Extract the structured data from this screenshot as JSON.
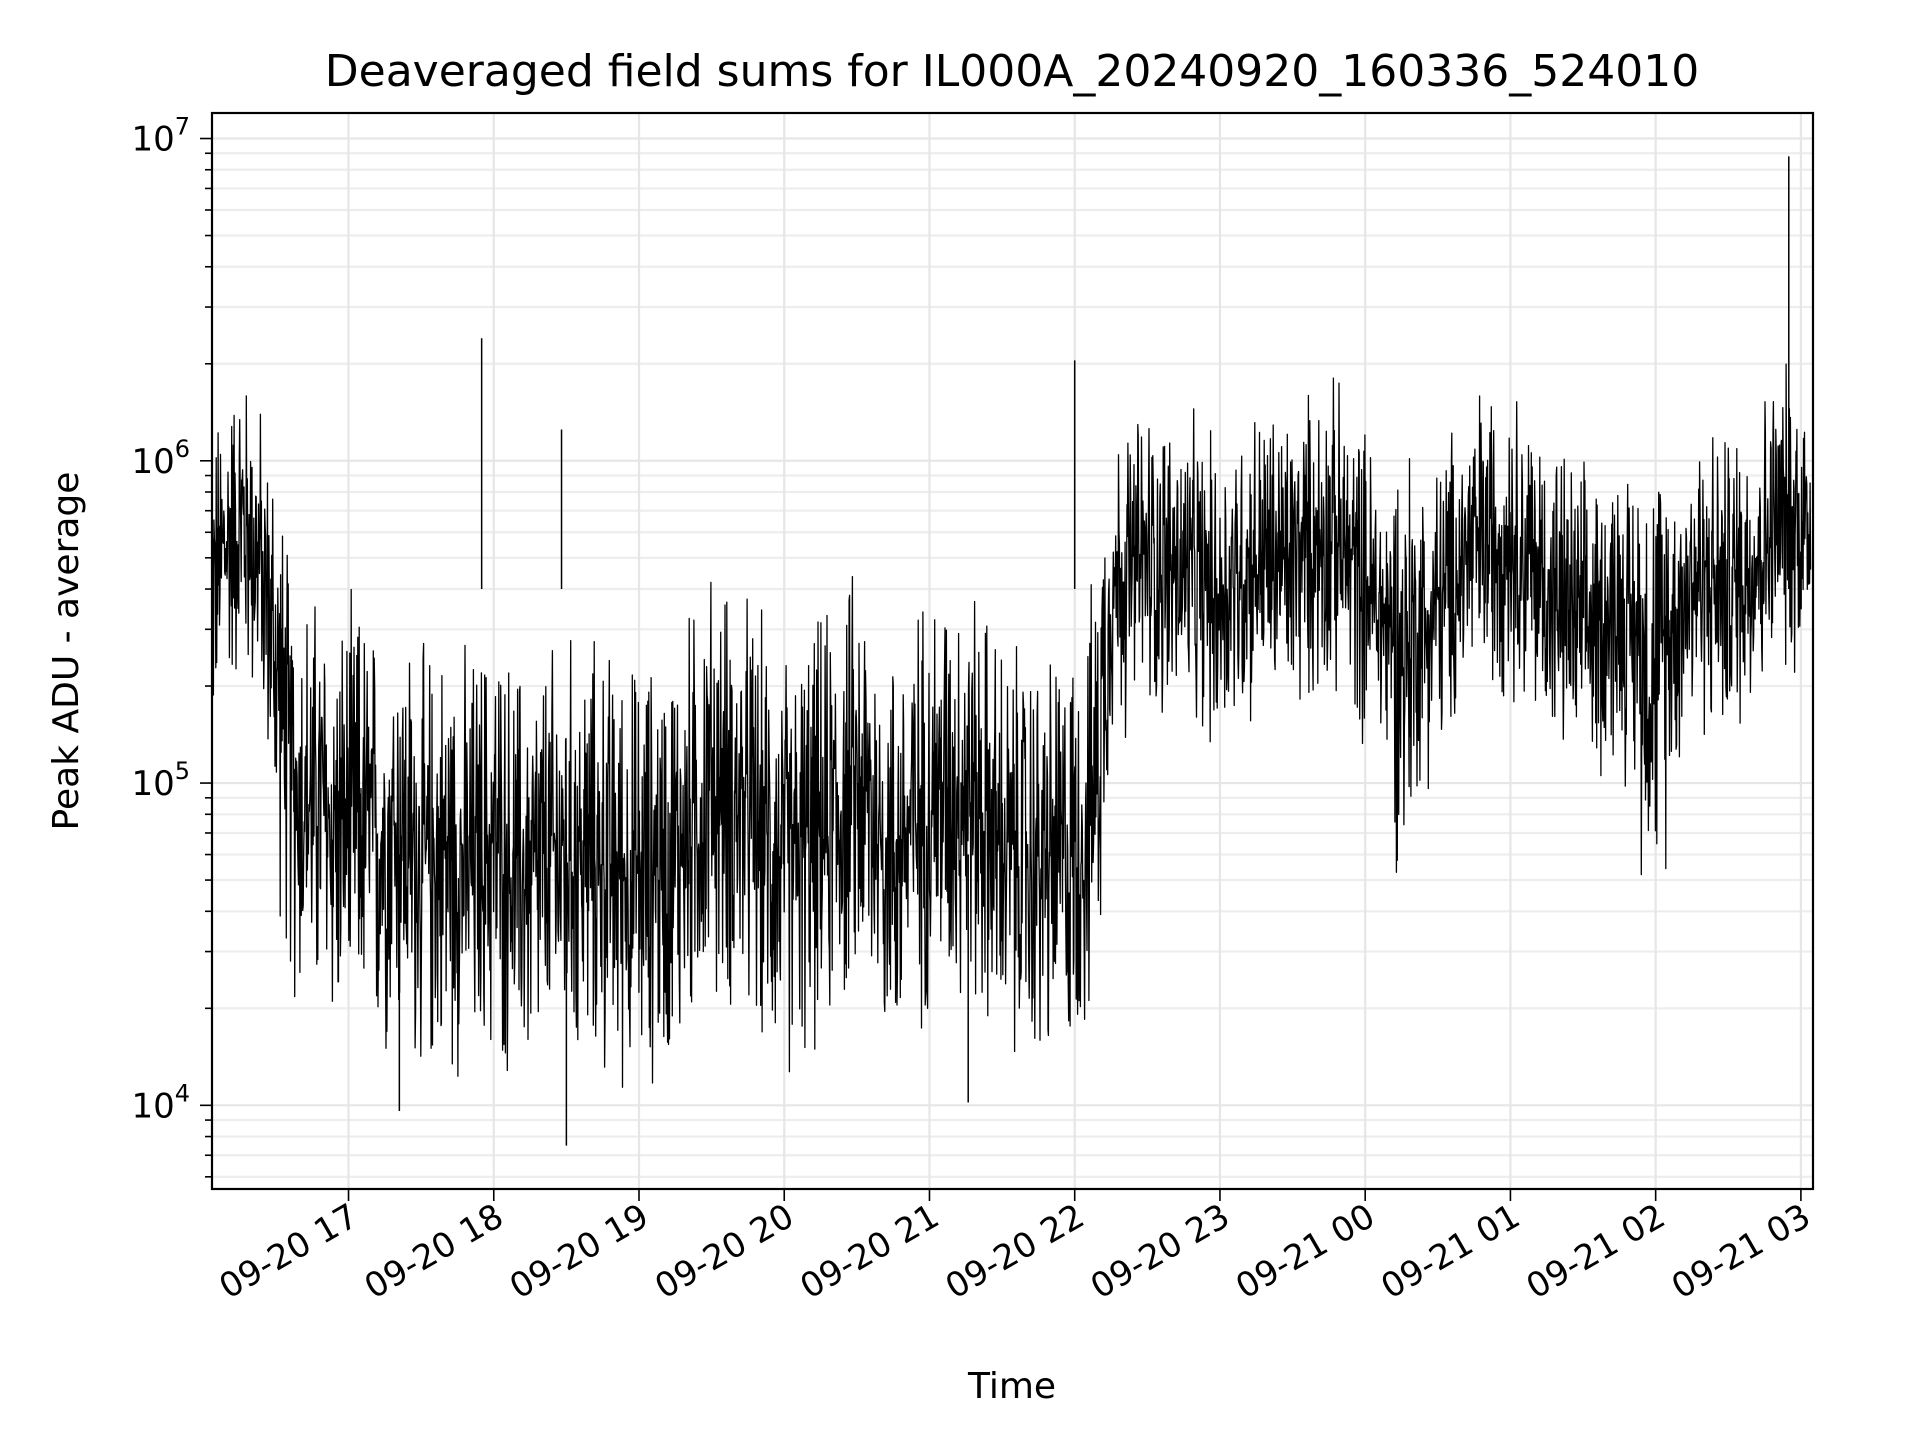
{
  "chart_data": {
    "type": "line",
    "title": "Deaveraged field sums for IL000A_20240920_160336_524010",
    "xlabel": "Time",
    "ylabel": "Peak ADU - average",
    "y_scale": "log",
    "ylim": [
      5500,
      12000000
    ],
    "xlim": [
      "2024-09-20 16:03:36",
      "2024-09-21 03:05:00"
    ],
    "grid": true,
    "line_color": "#000000",
    "x_ticks": [
      {
        "value": "2024-09-20 17:00",
        "label": "09-20 17"
      },
      {
        "value": "2024-09-20 18:00",
        "label": "09-20 18"
      },
      {
        "value": "2024-09-20 19:00",
        "label": "09-20 19"
      },
      {
        "value": "2024-09-20 20:00",
        "label": "09-20 20"
      },
      {
        "value": "2024-09-20 21:00",
        "label": "09-20 21"
      },
      {
        "value": "2024-09-20 22:00",
        "label": "09-20 22"
      },
      {
        "value": "2024-09-20 23:00",
        "label": "09-20 23"
      },
      {
        "value": "2024-09-21 00:00",
        "label": "09-21 00"
      },
      {
        "value": "2024-09-21 01:00",
        "label": "09-21 01"
      },
      {
        "value": "2024-09-21 02:00",
        "label": "09-21 02"
      },
      {
        "value": "2024-09-21 03:00",
        "label": "09-21 03"
      }
    ],
    "y_ticks": [
      {
        "value": 10000,
        "base": "10",
        "exp": "4"
      },
      {
        "value": 100000,
        "base": "10",
        "exp": "5"
      },
      {
        "value": 1000000,
        "base": "10",
        "exp": "6"
      },
      {
        "value": 10000000,
        "base": "10",
        "exp": "7"
      }
    ],
    "series": [
      {
        "x": [
          "2024-09-20 16:04",
          "2024-09-20 16:08",
          "2024-09-20 16:12",
          "2024-09-20 16:16",
          "2024-09-20 16:20",
          "2024-09-20 16:24",
          "2024-09-20 16:28",
          "2024-09-20 16:32",
          "2024-09-20 16:36",
          "2024-09-20 16:40",
          "2024-09-20 16:48",
          "2024-09-20 16:56",
          "2024-09-20 17:04",
          "2024-09-20 17:12",
          "2024-09-20 17:20",
          "2024-09-20 17:30",
          "2024-09-20 17:40",
          "2024-09-20 17:50",
          "2024-09-20 18:00",
          "2024-09-20 18:10",
          "2024-09-20 18:20",
          "2024-09-20 18:30",
          "2024-09-20 18:40",
          "2024-09-20 18:50",
          "2024-09-20 19:00",
          "2024-09-20 19:15",
          "2024-09-20 19:30",
          "2024-09-20 19:45",
          "2024-09-20 20:00",
          "2024-09-20 20:15",
          "2024-09-20 20:30",
          "2024-09-20 20:45",
          "2024-09-20 21:00",
          "2024-09-20 21:15",
          "2024-09-20 21:30",
          "2024-09-20 21:45",
          "2024-09-20 22:00",
          "2024-09-20 22:08",
          "2024-09-20 22:15",
          "2024-09-20 22:30",
          "2024-09-20 22:45",
          "2024-09-20 23:00",
          "2024-09-20 23:15",
          "2024-09-20 23:30",
          "2024-09-20 23:45",
          "2024-09-21 00:00",
          "2024-09-21 00:15",
          "2024-09-21 00:30",
          "2024-09-21 00:45",
          "2024-09-21 01:00",
          "2024-09-21 01:15",
          "2024-09-21 01:30",
          "2024-09-21 01:45",
          "2024-09-21 02:00",
          "2024-09-21 02:15",
          "2024-09-21 02:30",
          "2024-09-21 02:45",
          "2024-09-21 02:55",
          "2024-09-21 03:00",
          "2024-09-21 03:04"
        ],
        "y": [
          400000,
          520000,
          600000,
          650000,
          560000,
          480000,
          300000,
          180000,
          100000,
          90000,
          85000,
          70000,
          80000,
          65000,
          75000,
          55000,
          60000,
          55000,
          65000,
          50000,
          55000,
          60000,
          60000,
          55000,
          50000,
          60000,
          100000,
          80000,
          55000,
          70000,
          100000,
          60000,
          90000,
          100000,
          60000,
          55000,
          60000,
          90000,
          400000,
          500000,
          450000,
          380000,
          500000,
          480000,
          600000,
          420000,
          250000,
          350000,
          550000,
          600000,
          400000,
          300000,
          350000,
          220000,
          450000,
          400000,
          550000,
          700000,
          650000,
          600000
        ],
        "spikes": [
          {
            "x": "2024-09-20 17:55",
            "y": 2400000
          },
          {
            "x": "2024-09-20 18:28",
            "y": 1250000
          },
          {
            "x": "2024-09-20 22:00",
            "y": 2050000
          },
          {
            "x": "2024-09-21 02:55",
            "y": 8800000
          },
          {
            "x": "2024-09-20 18:30",
            "y": 7500
          },
          {
            "x": "2024-09-20 17:21",
            "y": 9600
          },
          {
            "x": "2024-09-20 21:16",
            "y": 10200
          }
        ]
      }
    ]
  }
}
